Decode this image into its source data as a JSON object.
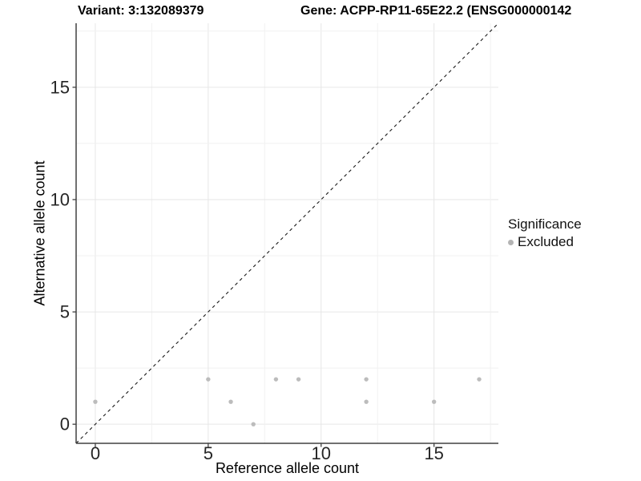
{
  "chart_data": {
    "type": "scatter",
    "title_left": "Variant: 3:132089379",
    "title_right": "Gene: ACPP-RP11-65E22.2 (ENSG000000142",
    "xlabel": "Reference allele count",
    "ylabel": "Alternative allele count",
    "xlim": [
      -0.85,
      17.85
    ],
    "ylim": [
      -0.85,
      17.85
    ],
    "xticks": [
      0,
      5,
      10,
      15
    ],
    "yticks": [
      0,
      5,
      10,
      15
    ],
    "minor_grid_step": 2.5,
    "grid": "major+minor",
    "reference_line": {
      "type": "identity y=x",
      "style": "dashed",
      "color": "#1a1a1a"
    },
    "series": [
      {
        "name": "Excluded",
        "color": "#bcbcbc",
        "points": [
          [
            0,
            1
          ],
          [
            5,
            2
          ],
          [
            6,
            1
          ],
          [
            7,
            0
          ],
          [
            8,
            2
          ],
          [
            9,
            2
          ],
          [
            12,
            1
          ],
          [
            12,
            2
          ],
          [
            15,
            1
          ],
          [
            17,
            2
          ]
        ]
      }
    ],
    "legend": {
      "title": "Significance",
      "position": "right",
      "items": [
        {
          "label": "Excluded",
          "color": "#b4b4b4",
          "icon": "dot-icon"
        }
      ]
    },
    "colors": {
      "background": "#ffffff",
      "grid_major": "#e6e6e6",
      "grid_minor": "#f1f1f1",
      "axis_line": "#404040",
      "tick_label": "#262626"
    }
  }
}
